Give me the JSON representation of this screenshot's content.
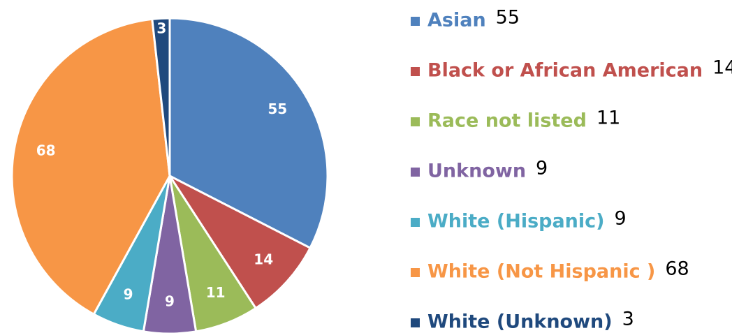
{
  "chart_data": {
    "type": "pie",
    "categories": [
      "Asian",
      "Black or African American",
      "Race not listed",
      "Unknown",
      "White (Hispanic)",
      "White (Not Hispanic )",
      "White (Unknown)"
    ],
    "values": [
      55,
      14,
      11,
      9,
      9,
      68,
      3
    ],
    "colors": [
      "#4f81bd",
      "#c0504d",
      "#9bbb59",
      "#8064a2",
      "#4bacc6",
      "#f79646",
      "#1f497d"
    ],
    "legend": "right"
  }
}
